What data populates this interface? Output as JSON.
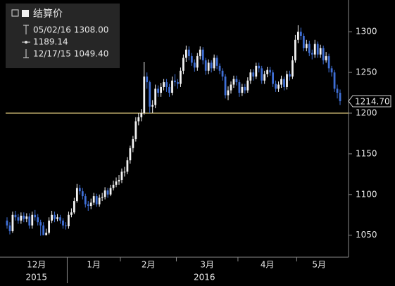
{
  "chart_data": {
    "type": "candlestick",
    "legend": {
      "title": "结算价",
      "high_text": "05/02/16 1308.00",
      "average_text": "1189.14",
      "low_text": "12/17/15 1049.40"
    },
    "categories": [
      "12月",
      null,
      null,
      null,
      null,
      null,
      null,
      null,
      null,
      null,
      null,
      null,
      null,
      null,
      null,
      null,
      null,
      null,
      null,
      null,
      null,
      null,
      "1月",
      null,
      null,
      null,
      null,
      null,
      null,
      null,
      null,
      null,
      null,
      null,
      null,
      null,
      null,
      null,
      null,
      null,
      null,
      "2月",
      null,
      null,
      null,
      null,
      null,
      null,
      null,
      null,
      null,
      null,
      null,
      null,
      null,
      null,
      null,
      null,
      null,
      null,
      null,
      "3月",
      null,
      null,
      null,
      null,
      null,
      null,
      null,
      null,
      null,
      null,
      null,
      null,
      null,
      null,
      null,
      null,
      null,
      null,
      null,
      null,
      null,
      "4月",
      null,
      null,
      null,
      null,
      null,
      null,
      null,
      null,
      null,
      null,
      null,
      null,
      null,
      null,
      null,
      null,
      null,
      null,
      null,
      null,
      "5月",
      null,
      null,
      null,
      null,
      null,
      null,
      null,
      null,
      null,
      null,
      null,
      null,
      null,
      null,
      null
    ],
    "years": [
      "2015",
      "2016"
    ],
    "series": {
      "up_color": "#f2f2f2",
      "down_color": "#3f6fd6",
      "open": [
        1068,
        1062,
        1055,
        1075,
        1072,
        1068,
        1074,
        1070,
        1073,
        1062,
        1075,
        1072,
        1066,
        1062,
        1050,
        1053,
        1068,
        1075,
        1070,
        1072,
        1068,
        1062,
        1061,
        1075,
        1078,
        1092,
        1108,
        1104,
        1098,
        1088,
        1086,
        1090,
        1098,
        1088,
        1096,
        1097,
        1105,
        1100,
        1108,
        1112,
        1116,
        1118,
        1128,
        1128,
        1142,
        1157,
        1168,
        1190,
        1195,
        1200,
        1245,
        1238,
        1208,
        1210,
        1230,
        1225,
        1232,
        1238,
        1232,
        1225,
        1240,
        1238,
        1236,
        1252,
        1268,
        1278,
        1270,
        1262,
        1256,
        1270,
        1278,
        1265,
        1252,
        1262,
        1255,
        1268,
        1258,
        1252,
        1245,
        1222,
        1228,
        1235,
        1242,
        1238,
        1225,
        1232,
        1228,
        1240,
        1250,
        1245,
        1258,
        1255,
        1240,
        1248,
        1253,
        1250,
        1236,
        1230,
        1235,
        1242,
        1232,
        1248,
        1245,
        1265,
        1290,
        1300,
        1295,
        1280,
        1285,
        1274,
        1272,
        1285,
        1272,
        1280,
        1265,
        1270,
        1255,
        1250,
        1230,
        1225
      ],
      "high": [
        1072,
        1066,
        1079,
        1080,
        1076,
        1078,
        1078,
        1077,
        1077,
        1079,
        1081,
        1076,
        1069,
        1066,
        1058,
        1072,
        1080,
        1079,
        1076,
        1075,
        1071,
        1066,
        1079,
        1083,
        1096,
        1113,
        1112,
        1108,
        1101,
        1092,
        1095,
        1102,
        1101,
        1100,
        1102,
        1109,
        1108,
        1112,
        1117,
        1121,
        1124,
        1132,
        1134,
        1146,
        1160,
        1172,
        1195,
        1200,
        1205,
        1263,
        1250,
        1240,
        1216,
        1235,
        1234,
        1237,
        1242,
        1242,
        1236,
        1245,
        1248,
        1242,
        1256,
        1272,
        1283,
        1282,
        1274,
        1266,
        1274,
        1282,
        1281,
        1268,
        1266,
        1265,
        1272,
        1271,
        1261,
        1255,
        1248,
        1233,
        1239,
        1246,
        1246,
        1241,
        1236,
        1236,
        1244,
        1254,
        1254,
        1262,
        1262,
        1258,
        1252,
        1257,
        1257,
        1253,
        1240,
        1239,
        1246,
        1245,
        1252,
        1252,
        1270,
        1296,
        1308,
        1305,
        1298,
        1290,
        1289,
        1278,
        1290,
        1288,
        1284,
        1283,
        1275,
        1273,
        1258,
        1253,
        1235,
        1229
      ],
      "low": [
        1058,
        1051,
        1053,
        1068,
        1064,
        1064,
        1066,
        1066,
        1058,
        1058,
        1068,
        1062,
        1049.4,
        1050,
        1050,
        1051,
        1065,
        1066,
        1067,
        1064,
        1058,
        1057,
        1058,
        1072,
        1076,
        1090,
        1100,
        1094,
        1084,
        1080,
        1082,
        1087,
        1085,
        1085,
        1092,
        1094,
        1096,
        1098,
        1105,
        1109,
        1112,
        1114,
        1122,
        1125,
        1138,
        1152,
        1165,
        1185,
        1190,
        1198,
        1230,
        1200,
        1200,
        1206,
        1220,
        1220,
        1228,
        1226,
        1220,
        1222,
        1233,
        1230,
        1232,
        1248,
        1263,
        1265,
        1258,
        1251,
        1252,
        1266,
        1260,
        1247,
        1248,
        1250,
        1252,
        1254,
        1248,
        1240,
        1218,
        1216,
        1224,
        1231,
        1234,
        1220,
        1221,
        1224,
        1225,
        1236,
        1240,
        1242,
        1250,
        1236,
        1236,
        1244,
        1246,
        1232,
        1226,
        1226,
        1231,
        1228,
        1229,
        1240,
        1242,
        1262,
        1286,
        1290,
        1276,
        1276,
        1270,
        1266,
        1268,
        1268,
        1268,
        1260,
        1262,
        1250,
        1245,
        1226,
        1218,
        1210
      ],
      "close": [
        1062,
        1055,
        1075,
        1072,
        1068,
        1074,
        1070,
        1073,
        1062,
        1075,
        1072,
        1066,
        1062,
        1050,
        1053,
        1068,
        1075,
        1070,
        1072,
        1068,
        1062,
        1061,
        1075,
        1078,
        1092,
        1108,
        1104,
        1098,
        1088,
        1086,
        1090,
        1098,
        1088,
        1096,
        1097,
        1105,
        1100,
        1108,
        1112,
        1116,
        1118,
        1128,
        1128,
        1142,
        1157,
        1168,
        1190,
        1195,
        1200,
        1245,
        1238,
        1208,
        1210,
        1230,
        1225,
        1232,
        1238,
        1232,
        1225,
        1240,
        1238,
        1236,
        1252,
        1268,
        1278,
        1270,
        1262,
        1256,
        1270,
        1278,
        1265,
        1252,
        1262,
        1255,
        1268,
        1258,
        1252,
        1245,
        1222,
        1228,
        1235,
        1242,
        1238,
        1225,
        1232,
        1228,
        1240,
        1250,
        1245,
        1258,
        1255,
        1240,
        1248,
        1253,
        1250,
        1236,
        1230,
        1235,
        1242,
        1232,
        1248,
        1245,
        1265,
        1290,
        1300,
        1295,
        1280,
        1285,
        1274,
        1272,
        1285,
        1272,
        1280,
        1265,
        1270,
        1255,
        1250,
        1230,
        1225,
        1214.7
      ]
    },
    "last_label": "1214.70",
    "reference_line": {
      "value": 1200,
      "color": "#d9c27a"
    },
    "ylim": [
      1023,
      1339
    ],
    "yticks": [
      1050,
      1100,
      1150,
      1200,
      1250,
      1300
    ],
    "grid": false
  }
}
